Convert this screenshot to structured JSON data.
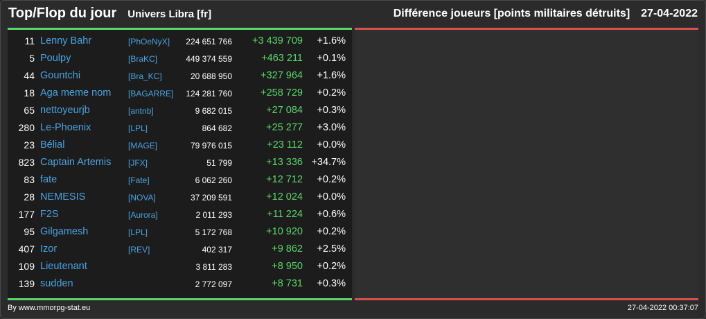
{
  "header": {
    "title": "Top/Flop du jour",
    "subtitle": "Univers Libra [fr]",
    "category": "Différence joueurs [points militaires détruits]",
    "date": "27-04-2022"
  },
  "colors": {
    "accent_green": "#5bd66a",
    "accent_red": "#d9504c",
    "link_blue": "#4aa3e0",
    "background": "#2b2b2b"
  },
  "rows": [
    {
      "rank": "11",
      "name": "Lenny Bahr",
      "alliance": "[PhOeNyX]",
      "points": "224 651 766",
      "diff": "+3 439 709",
      "pct": "+1.6%"
    },
    {
      "rank": "5",
      "name": "Poulpy",
      "alliance": "[BraKC]",
      "points": "449 374 559",
      "diff": "+463 211",
      "pct": "+0.1%"
    },
    {
      "rank": "44",
      "name": "Gountchi",
      "alliance": "[Bra_KC]",
      "points": "20 688 950",
      "diff": "+327 964",
      "pct": "+1.6%"
    },
    {
      "rank": "18",
      "name": "Aga meme nom",
      "alliance": "[BAGARRE]",
      "points": "124 281 760",
      "diff": "+258 729",
      "pct": "+0.2%"
    },
    {
      "rank": "65",
      "name": "nettoyeurjb",
      "alliance": "[antnb]",
      "points": "9 682 015",
      "diff": "+27 084",
      "pct": "+0.3%"
    },
    {
      "rank": "280",
      "name": "Le-Phoenix",
      "alliance": "[LPL]",
      "points": "864 682",
      "diff": "+25 277",
      "pct": "+3.0%"
    },
    {
      "rank": "23",
      "name": "Bélial",
      "alliance": "[MAGE]",
      "points": "79 976 015",
      "diff": "+23 112",
      "pct": "+0.0%"
    },
    {
      "rank": "823",
      "name": "Captain Artemis",
      "alliance": "[JFX]",
      "points": "51 799",
      "diff": "+13 336",
      "pct": "+34.7%"
    },
    {
      "rank": "83",
      "name": "fate",
      "alliance": "[Fate]",
      "points": "6 062 260",
      "diff": "+12 712",
      "pct": "+0.2%"
    },
    {
      "rank": "28",
      "name": "NEMESIS",
      "alliance": "[NOVA]",
      "points": "37 209 591",
      "diff": "+12 024",
      "pct": "+0.0%"
    },
    {
      "rank": "177",
      "name": "F2S",
      "alliance": "[Aurora]",
      "points": "2 011 293",
      "diff": "+11 224",
      "pct": "+0.6%"
    },
    {
      "rank": "95",
      "name": "Gilgamesh",
      "alliance": "[LPL]",
      "points": "5 172 768",
      "diff": "+10 920",
      "pct": "+0.2%"
    },
    {
      "rank": "407",
      "name": "Izor",
      "alliance": "[REV]",
      "points": "402 317",
      "diff": "+9 862",
      "pct": "+2.5%"
    },
    {
      "rank": "109",
      "name": "Lieutenant",
      "alliance": "",
      "points": "3 811 283",
      "diff": "+8 950",
      "pct": "+0.2%"
    },
    {
      "rank": "139",
      "name": "sudden",
      "alliance": "",
      "points": "2 772 097",
      "diff": "+8 731",
      "pct": "+0.3%"
    }
  ],
  "footer": {
    "credit": "By www.mmorpg-stat.eu",
    "timestamp": "27-04-2022 00:37:07"
  }
}
